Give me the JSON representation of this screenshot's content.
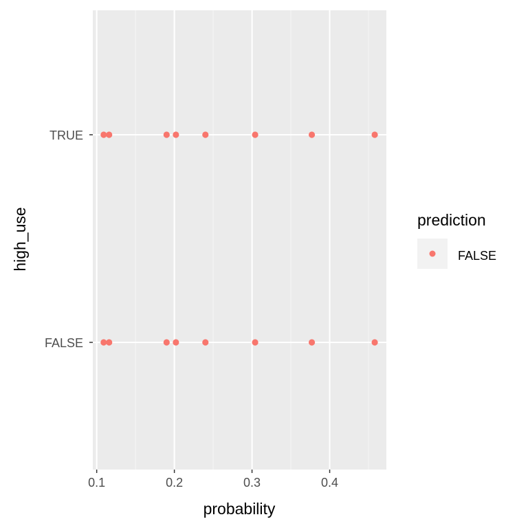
{
  "chart_data": {
    "type": "scatter",
    "title": "",
    "xlabel": "probability",
    "ylabel": "high_use",
    "xlim": [
      0.095,
      0.473
    ],
    "x_ticks": [
      0.1,
      0.2,
      0.3,
      0.4
    ],
    "x_tick_labels": [
      "0.1",
      "0.2",
      "0.3",
      "0.4"
    ],
    "categories": [
      "FALSE",
      "TRUE"
    ],
    "grid": true,
    "legend_position": "right",
    "legend": {
      "title": "prediction",
      "entries": [
        {
          "label": "FALSE",
          "color": "#F8766D"
        }
      ]
    },
    "series": [
      {
        "name": "FALSE",
        "color": "#F8766D",
        "points": [
          {
            "x": 0.109,
            "y": "TRUE"
          },
          {
            "x": 0.116,
            "y": "TRUE"
          },
          {
            "x": 0.19,
            "y": "TRUE"
          },
          {
            "x": 0.202,
            "y": "TRUE"
          },
          {
            "x": 0.24,
            "y": "TRUE"
          },
          {
            "x": 0.304,
            "y": "TRUE"
          },
          {
            "x": 0.377,
            "y": "TRUE"
          },
          {
            "x": 0.458,
            "y": "TRUE"
          },
          {
            "x": 0.109,
            "y": "FALSE"
          },
          {
            "x": 0.116,
            "y": "FALSE"
          },
          {
            "x": 0.19,
            "y": "FALSE"
          },
          {
            "x": 0.202,
            "y": "FALSE"
          },
          {
            "x": 0.24,
            "y": "FALSE"
          },
          {
            "x": 0.304,
            "y": "FALSE"
          },
          {
            "x": 0.377,
            "y": "FALSE"
          },
          {
            "x": 0.458,
            "y": "FALSE"
          }
        ]
      }
    ]
  },
  "colors": {
    "panel_background": "#EBEBEB",
    "grid_major": "#FFFFFF",
    "grid_minor": "#F5F5F5",
    "tick_text": "#4D4D4D",
    "point": "#F8766D"
  }
}
